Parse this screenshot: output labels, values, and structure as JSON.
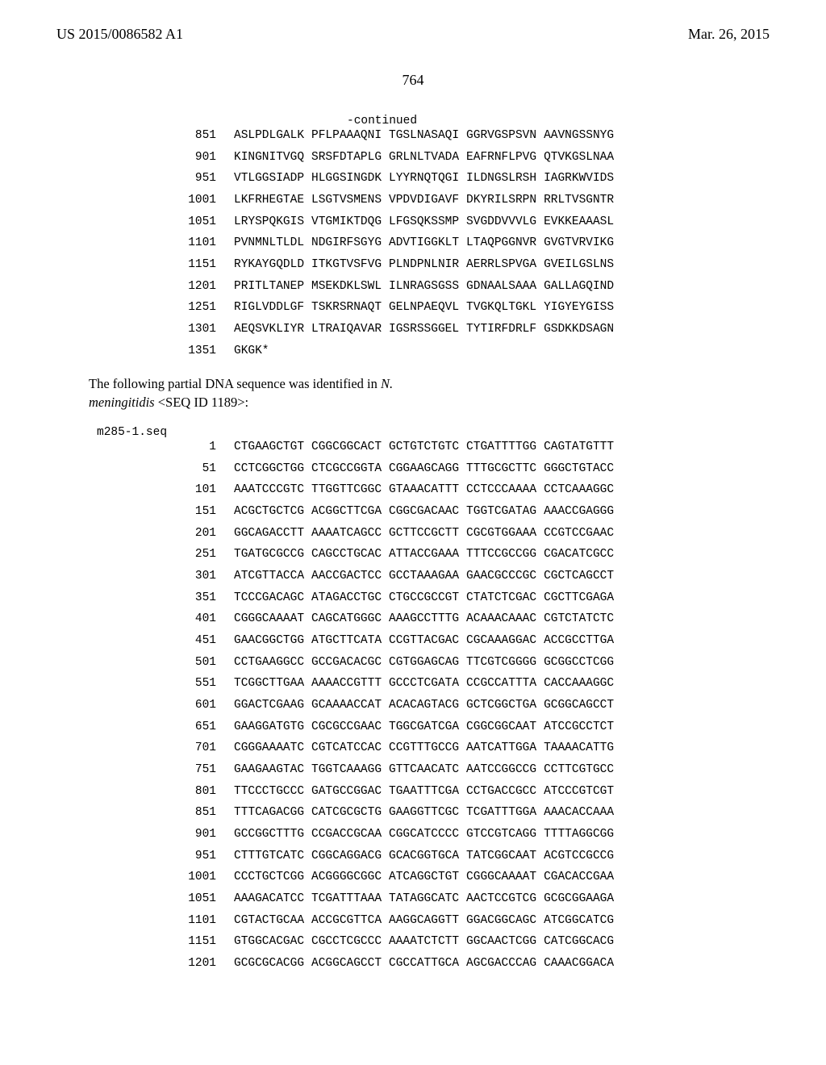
{
  "header": {
    "left": "US 2015/0086582 A1",
    "right": "Mar. 26, 2015"
  },
  "page_number": "764",
  "block1": {
    "continued_label": "-continued",
    "rows": [
      {
        "pos": "851",
        "grps": [
          "ASLPDLGALK",
          "PFLPAAAQNI",
          "TGSLNASAQI",
          "GGRVGSPSVN",
          "AAVNGSSNYG"
        ]
      },
      {
        "pos": "901",
        "grps": [
          "KINGNITVGQ",
          "SRSFDTAPLG",
          "GRLNLTVADA",
          "EAFRNFLPVG",
          "QTVKGSLNAA"
        ]
      },
      {
        "pos": "951",
        "grps": [
          "VTLGGSIADP",
          "HLGGSINGDK",
          "LYYRNQTQGI",
          "ILDNGSLRSH",
          "IAGRKWVIDS"
        ]
      },
      {
        "pos": "1001",
        "grps": [
          "LKFRHEGTAE",
          "LSGTVSMENS",
          "VPDVDIGAVF",
          "DKYRILSRPN",
          "RRLTVSGNTR"
        ]
      },
      {
        "pos": "1051",
        "grps": [
          "LRYSPQKGIS",
          "VTGMIKTDQG",
          "LFGSQKSSMP",
          "SVGDDVVVLG",
          "EVKKEAAASL"
        ]
      },
      {
        "pos": "1101",
        "grps": [
          "PVNMNLTLDL",
          "NDGIRFSGYG",
          "ADVTIGGKLT",
          "LTAQPGGNVR",
          "GVGTVRVIKG"
        ]
      },
      {
        "pos": "1151",
        "grps": [
          "RYKAYGQDLD",
          "ITKGTVSFVG",
          "PLNDPNLNIR",
          "AERRLSPVGA",
          "GVEILGSLNS"
        ]
      },
      {
        "pos": "1201",
        "grps": [
          "PRITLTANEP",
          "MSEKDKLSWL",
          "ILNRAGSGSS",
          "GDNAALSAAA",
          "GALLAGQIND"
        ]
      },
      {
        "pos": "1251",
        "grps": [
          "RIGLVDDLGF",
          "TSKRSRNAQT",
          "GELNPAEQVL",
          "TVGKQLTGKL",
          "YIGYEYGISS"
        ]
      },
      {
        "pos": "1301",
        "grps": [
          "AEQSVKLIYR",
          "LTRAIQAVAR",
          "IGSRSSGGEL",
          "TYTIRFDRLF",
          "GSDKKDSAGN"
        ]
      },
      {
        "pos": "1351",
        "grps": [
          "GKGK*",
          "",
          "",
          "",
          ""
        ]
      }
    ]
  },
  "intro_text": {
    "line1_a": "The following partial DNA sequence was identified in ",
    "line1_b": "N.",
    "line2_a": "meningitidis",
    "line2_b": " <SEQ ID 1189>:"
  },
  "block2": {
    "seq_name": "m285-1.seq",
    "rows": [
      {
        "pos": "1",
        "grps": [
          "CTGAAGCTGT",
          "CGGCGGCACT",
          "GCTGTCTGTC",
          "CTGATTTTGG",
          "CAGTATGTTT"
        ]
      },
      {
        "pos": "51",
        "grps": [
          "CCTCGGCTGG",
          "CTCGCCGGTA",
          "CGGAAGCAGG",
          "TTTGCGCTTC",
          "GGGCTGTACC"
        ]
      },
      {
        "pos": "101",
        "grps": [
          "AAATCCCGTC",
          "TTGGTTCGGC",
          "GTAAACATTT",
          "CCTCCCAAAA",
          "CCTCAAAGGC"
        ]
      },
      {
        "pos": "151",
        "grps": [
          "ACGCTGCTCG",
          "ACGGCTTCGA",
          "CGGCGACAAC",
          "TGGTCGATAG",
          "AAACCGAGGG"
        ]
      },
      {
        "pos": "201",
        "grps": [
          "GGCAGACCTT",
          "AAAATCAGCC",
          "GCTTCCGCTT",
          "CGCGTGGAAA",
          "CCGTCCGAAC"
        ]
      },
      {
        "pos": "251",
        "grps": [
          "TGATGCGCCG",
          "CAGCCTGCAC",
          "ATTACCGAAA",
          "TTTCCGCCGG",
          "CGACATCGCC"
        ]
      },
      {
        "pos": "301",
        "grps": [
          "ATCGTTACCA",
          "AACCGACTCC",
          "GCCTAAAGAA",
          "GAACGCCCGC",
          "CGCTCAGCCT"
        ]
      },
      {
        "pos": "351",
        "grps": [
          "TCCCGACAGC",
          "ATAGACCTGC",
          "CTGCCGCCGT",
          "CTATCTCGAC",
          "CGCTTCGAGA"
        ]
      },
      {
        "pos": "401",
        "grps": [
          "CGGGCAAAAT",
          "CAGCATGGGC",
          "AAAGCCTTTG",
          "ACAAACAAAC",
          "CGTCTATCTC"
        ]
      },
      {
        "pos": "451",
        "grps": [
          "GAACGGCTGG",
          "ATGCTTCATA",
          "CCGTTACGAC",
          "CGCAAAGGAC",
          "ACCGCCTTGA"
        ]
      },
      {
        "pos": "501",
        "grps": [
          "CCTGAAGGCC",
          "GCCGACACGC",
          "CGTGGAGCAG",
          "TTCGTCGGGG",
          "GCGGCCTCGG"
        ]
      },
      {
        "pos": "551",
        "grps": [
          "TCGGCTTGAA",
          "AAAACCGTTT",
          "GCCCTCGATA",
          "CCGCCATTTA",
          "CACCAAAGGC"
        ]
      },
      {
        "pos": "601",
        "grps": [
          "GGACTCGAAG",
          "GCAAAACCAT",
          "ACACAGTACG",
          "GCTCGGCTGA",
          "GCGGCAGCCT"
        ]
      },
      {
        "pos": "651",
        "grps": [
          "GAAGGATGTG",
          "CGCGCCGAAC",
          "TGGCGATCGA",
          "CGGCGGCAAT",
          "ATCCGCCTCT"
        ]
      },
      {
        "pos": "701",
        "grps": [
          "CGGGAAAATC",
          "CGTCATCCAC",
          "CCGTTTGCCG",
          "AATCATTGGA",
          "TAAAACATTG"
        ]
      },
      {
        "pos": "751",
        "grps": [
          "GAAGAAGTAC",
          "TGGTCAAAGG",
          "GTTCAACATC",
          "AATCCGGCCG",
          "CCTTCGTGCC"
        ]
      },
      {
        "pos": "801",
        "grps": [
          "TTCCCTGCCC",
          "GATGCCGGAC",
          "TGAATTTCGA",
          "CCTGACCGCC",
          "ATCCCGTCGT"
        ]
      },
      {
        "pos": "851",
        "grps": [
          "TTTCAGACGG",
          "CATCGCGCTG",
          "GAAGGTTCGC",
          "TCGATTTGGA",
          "AAACACCAAA"
        ]
      },
      {
        "pos": "901",
        "grps": [
          "GCCGGCTTTG",
          "CCGACCGCAA",
          "CGGCATCCCC",
          "GTCCGTCAGG",
          "TTTTAGGCGG"
        ]
      },
      {
        "pos": "951",
        "grps": [
          "CTTTGTCATC",
          "CGGCAGGACG",
          "GCACGGTGCA",
          "TATCGGCAAT",
          "ACGTCCGCCG"
        ]
      },
      {
        "pos": "1001",
        "grps": [
          "CCCTGCTCGG",
          "ACGGGGCGGC",
          "ATCAGGCTGT",
          "CGGGCAAAAT",
          "CGACACCGAA"
        ]
      },
      {
        "pos": "1051",
        "grps": [
          "AAAGACATCC",
          "TCGATTTAAA",
          "TATAGGCATC",
          "AACTCCGTCG",
          "GCGCGGAAGA"
        ]
      },
      {
        "pos": "1101",
        "grps": [
          "CGTACTGCAA",
          "ACCGCGTTCA",
          "AAGGCAGGTT",
          "GGACGGCAGC",
          "ATCGGCATCG"
        ]
      },
      {
        "pos": "1151",
        "grps": [
          "GTGGCACGAC",
          "CGCCTCGCCC",
          "AAAATCTCTT",
          "GGCAACTCGG",
          "CATCGGCACG"
        ]
      },
      {
        "pos": "1201",
        "grps": [
          "GCGCGCACGG",
          "ACGGCAGCCT",
          "CGCCATTGCA",
          "AGCGACCCAG",
          "CAAACGGACA"
        ]
      }
    ]
  }
}
